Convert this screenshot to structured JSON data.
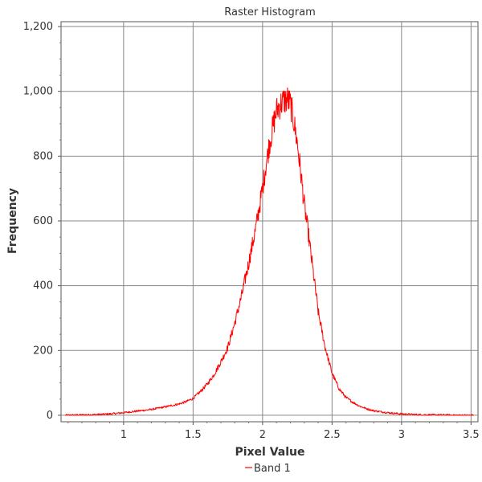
{
  "chart_data": {
    "type": "line",
    "title": "Raster Histogram",
    "xlabel": "Pixel Value",
    "ylabel": "Frequency",
    "xlim": [
      0.55,
      3.55
    ],
    "ylim": [
      -20,
      1215
    ],
    "x_ticks": [
      1,
      1.5,
      2,
      2.5,
      3,
      3.5
    ],
    "x_tick_labels": [
      "1",
      "1.5",
      "2",
      "2.5",
      "3",
      "3.5"
    ],
    "y_ticks": [
      0,
      200,
      400,
      600,
      800,
      1000,
      1200
    ],
    "y_tick_labels": [
      "0",
      "200",
      "400",
      "600",
      "800",
      "1,000",
      "1,200"
    ],
    "grid": true,
    "legend_position": "bottom-center",
    "series": [
      {
        "name": "Band 1",
        "color": "#ff0000",
        "x": [
          0.58,
          0.7,
          0.8,
          0.9,
          1.0,
          1.1,
          1.2,
          1.25,
          1.3,
          1.4,
          1.45,
          1.5,
          1.55,
          1.6,
          1.65,
          1.7,
          1.75,
          1.8,
          1.85,
          1.9,
          1.95,
          2.0,
          2.02,
          2.05,
          2.08,
          2.1,
          2.12,
          2.15,
          2.18,
          2.2,
          2.22,
          2.25,
          2.28,
          2.3,
          2.33,
          2.35,
          2.38,
          2.4,
          2.45,
          2.5,
          2.55,
          2.6,
          2.65,
          2.7,
          2.75,
          2.8,
          2.9,
          3.0,
          3.1,
          3.2,
          3.3,
          3.4,
          3.52
        ],
        "y": [
          0,
          1,
          2,
          4,
          8,
          13,
          18,
          22,
          26,
          35,
          42,
          52,
          72,
          95,
          125,
          165,
          210,
          285,
          370,
          470,
          575,
          700,
          760,
          840,
          900,
          940,
          955,
          970,
          975,
          960,
          920,
          840,
          730,
          650,
          560,
          490,
          390,
          320,
          210,
          130,
          82,
          55,
          40,
          28,
          20,
          14,
          8,
          4,
          2,
          1,
          1,
          0,
          0
        ]
      }
    ]
  }
}
